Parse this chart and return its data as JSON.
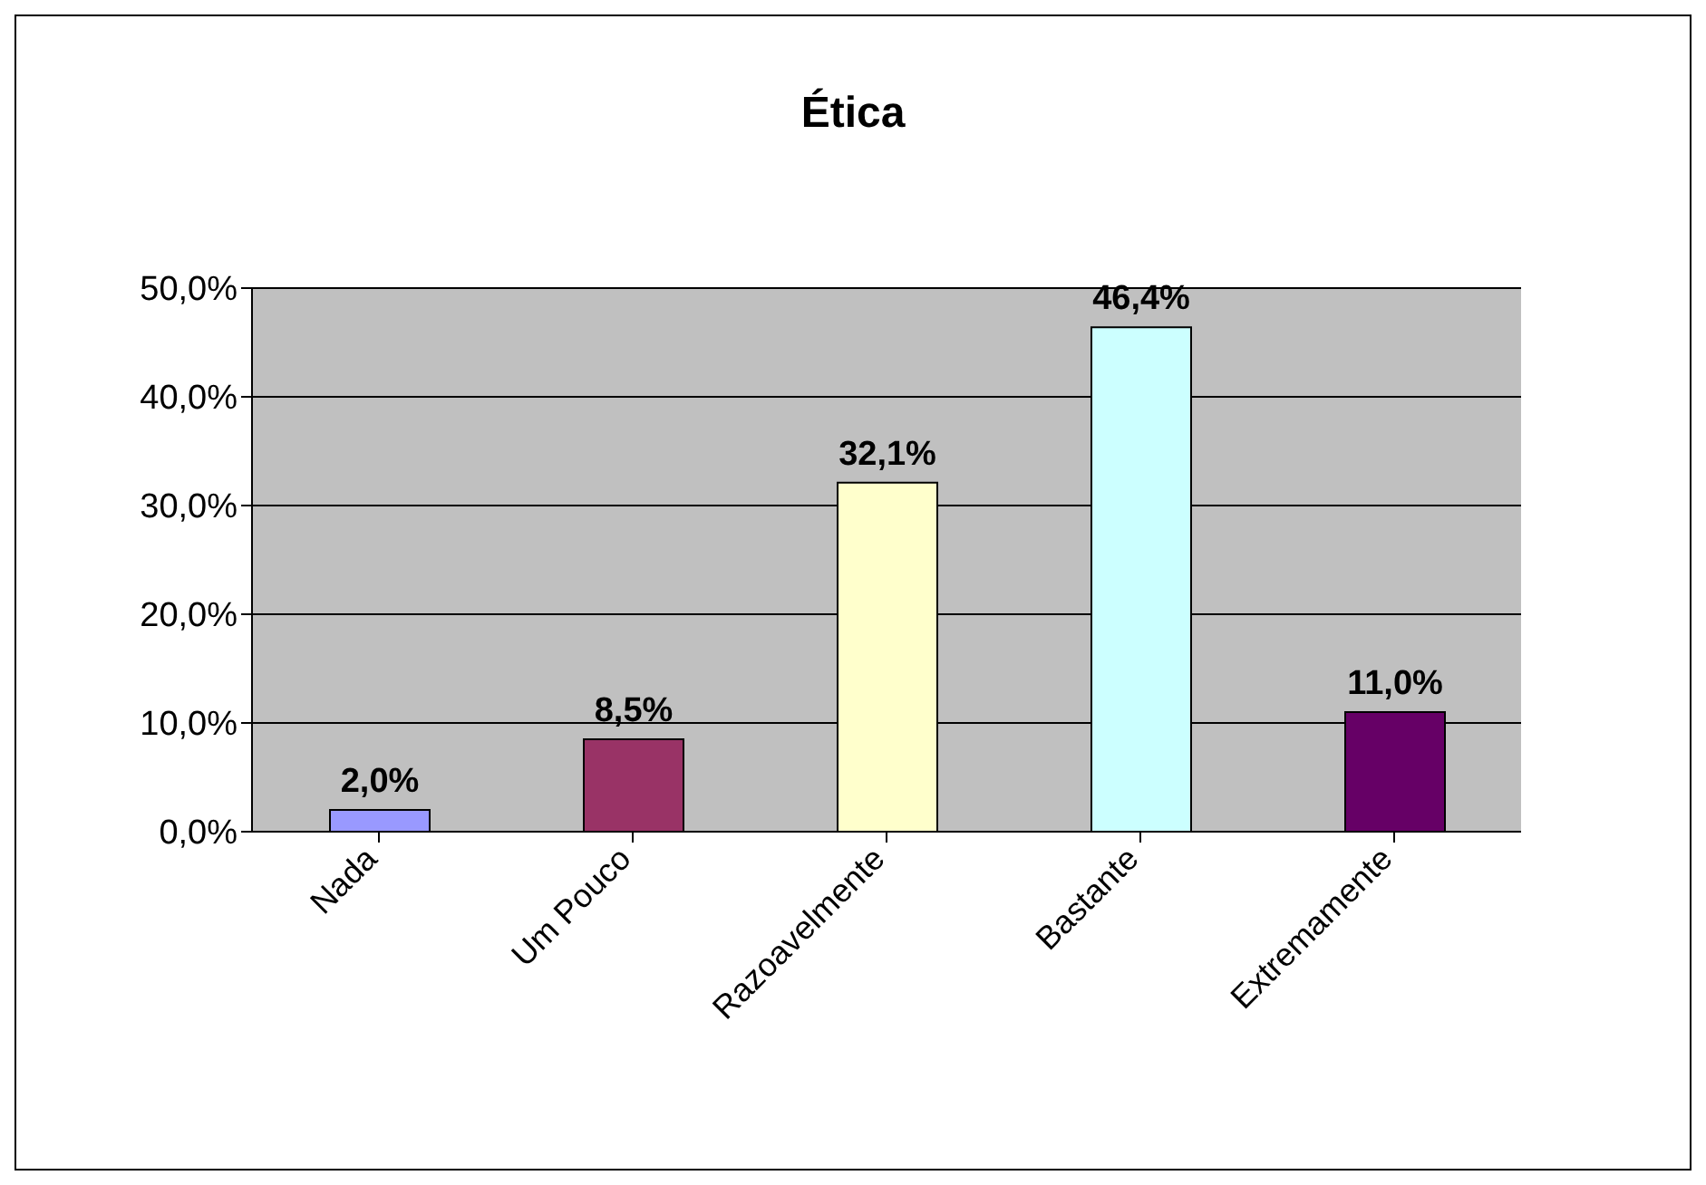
{
  "chart_data": {
    "type": "bar",
    "title": "Ética",
    "categories": [
      "Nada",
      "Um Pouco",
      "Razoavelmente",
      "Bastante",
      "Extremamente"
    ],
    "values": [
      2.0,
      8.5,
      32.1,
      46.4,
      11.0
    ],
    "colors": [
      "#9999ff",
      "#993366",
      "#ffffcc",
      "#ccffff",
      "#660066"
    ],
    "value_labels": [
      "2,0%",
      "8,5%",
      "32,1%",
      "46,4%",
      "11,0%"
    ],
    "ylim": [
      0,
      50
    ],
    "yticks": [
      {
        "value": 0,
        "label": "0,0%"
      },
      {
        "value": 10,
        "label": "10,0%"
      },
      {
        "value": 20,
        "label": "20,0%"
      },
      {
        "value": 30,
        "label": "30,0%"
      },
      {
        "value": 40,
        "label": "40,0%"
      },
      {
        "value": 50,
        "label": "50,0%"
      }
    ],
    "grid": "y",
    "legend": false
  }
}
